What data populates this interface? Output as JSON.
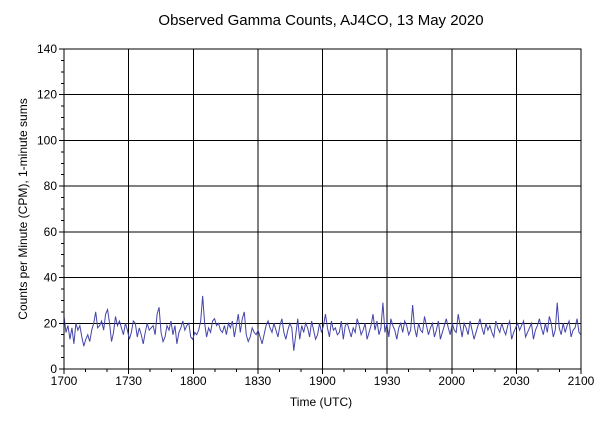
{
  "chart_data": {
    "type": "line",
    "title": "Observed Gamma Counts, AJ4CO, 13 May 2020",
    "xlabel": "Time (UTC)",
    "ylabel": "Counts per Minute (CPM), 1-minute sums",
    "xlim_minutes": [
      0,
      240
    ],
    "ylim": [
      0,
      140
    ],
    "x_ticks": [
      "1700",
      "1730",
      "1800",
      "1830",
      "1900",
      "1930",
      "2000",
      "2030",
      "2100"
    ],
    "y_ticks": [
      "0",
      "20",
      "40",
      "60",
      "80",
      "100",
      "120",
      "140"
    ],
    "grid": true,
    "legend": "none",
    "line_color": "#4444aa",
    "series": [
      {
        "values": [
          23,
          16,
          19,
          13,
          18,
          11,
          20,
          17,
          19,
          14,
          10,
          13,
          15,
          12,
          17,
          20,
          25,
          18,
          19,
          21,
          17,
          24,
          26,
          20,
          12,
          16,
          23,
          19,
          21,
          18,
          15,
          20,
          17,
          13,
          16,
          21,
          20,
          14,
          18,
          15,
          11,
          16,
          20,
          17,
          18,
          19,
          15,
          24,
          27,
          16,
          12,
          14,
          19,
          17,
          21,
          15,
          19,
          11,
          16,
          18,
          21,
          17,
          19,
          20,
          14,
          13,
          16,
          15,
          17,
          21,
          32,
          20,
          14,
          18,
          16,
          21,
          22,
          19,
          20,
          17,
          16,
          19,
          15,
          20,
          18,
          21,
          14,
          19,
          24,
          16,
          22,
          25,
          15,
          12,
          14,
          18,
          16,
          15,
          17,
          14,
          11,
          15,
          19,
          21,
          18,
          16,
          20,
          17,
          14,
          19,
          22,
          16,
          13,
          17,
          20,
          18,
          8,
          15,
          22,
          13,
          19,
          16,
          20,
          18,
          14,
          21,
          17,
          13,
          15,
          20,
          16,
          19,
          24,
          18,
          14,
          21,
          17,
          18,
          15,
          16,
          21,
          13,
          19,
          20,
          17,
          14,
          18,
          16,
          22,
          19,
          15,
          17,
          20,
          13,
          16,
          19,
          24,
          17,
          21,
          15,
          18,
          29,
          16,
          20,
          14,
          22,
          19,
          17,
          13,
          18,
          20,
          16,
          21,
          19,
          15,
          17,
          28,
          18,
          14,
          20,
          17,
          16,
          23,
          19,
          15,
          18,
          20,
          14,
          17,
          21,
          13,
          16,
          19,
          22,
          18,
          15,
          20,
          17,
          16,
          24,
          19,
          14,
          20,
          18,
          15,
          21,
          17,
          13,
          16,
          19,
          22,
          18,
          15,
          20,
          17,
          19,
          16,
          14,
          21,
          18,
          16,
          20,
          17,
          15,
          19,
          21,
          13,
          16,
          18,
          20,
          17,
          19,
          21,
          14,
          16,
          18,
          20,
          13,
          17,
          19,
          22,
          18,
          15,
          20,
          16,
          23,
          20,
          14,
          17,
          29,
          18,
          15,
          20,
          16,
          19,
          21,
          14,
          17,
          18,
          22,
          16,
          15
        ]
      }
    ]
  }
}
